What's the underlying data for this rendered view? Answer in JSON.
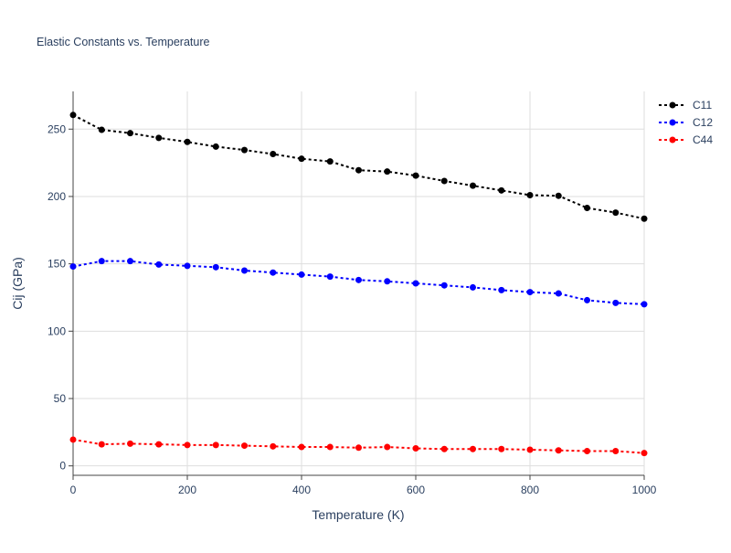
{
  "chart_data": {
    "type": "line",
    "title": "Elastic Constants vs. Temperature",
    "xlabel": "Temperature (K)",
    "ylabel": "Cij (GPa)",
    "xlim": [
      0,
      1000
    ],
    "ylim": [
      -7,
      278
    ],
    "x_ticks": [
      0,
      200,
      400,
      600,
      800,
      1000
    ],
    "y_ticks": [
      0,
      50,
      100,
      150,
      200,
      250
    ],
    "grid": true,
    "legend_position": "top-right",
    "x": [
      0,
      50,
      100,
      150,
      200,
      250,
      300,
      350,
      400,
      450,
      500,
      550,
      600,
      650,
      700,
      750,
      800,
      850,
      900,
      950,
      1000
    ],
    "series": [
      {
        "name": "C11",
        "color": "#000000",
        "values": [
          260.5,
          249.5,
          247.0,
          243.5,
          240.5,
          237.0,
          234.5,
          231.5,
          228.0,
          226.0,
          219.5,
          218.5,
          215.5,
          211.5,
          208.0,
          204.5,
          201.0,
          200.5,
          191.5,
          188.0,
          183.5
        ]
      },
      {
        "name": "C12",
        "color": "#0000ff",
        "values": [
          148.0,
          152.0,
          152.0,
          149.5,
          148.5,
          147.5,
          145.0,
          143.5,
          142.0,
          140.5,
          138.0,
          137.0,
          135.5,
          134.0,
          132.5,
          130.5,
          129.0,
          128.0,
          123.0,
          121.0,
          120.0
        ]
      },
      {
        "name": "C44",
        "color": "#ff0000",
        "values": [
          19.5,
          16.0,
          16.5,
          16.0,
          15.5,
          15.5,
          15.0,
          14.5,
          14.0,
          14.0,
          13.5,
          14.0,
          13.0,
          12.5,
          12.5,
          12.5,
          12.0,
          11.5,
          11.0,
          11.0,
          9.5
        ]
      }
    ]
  }
}
